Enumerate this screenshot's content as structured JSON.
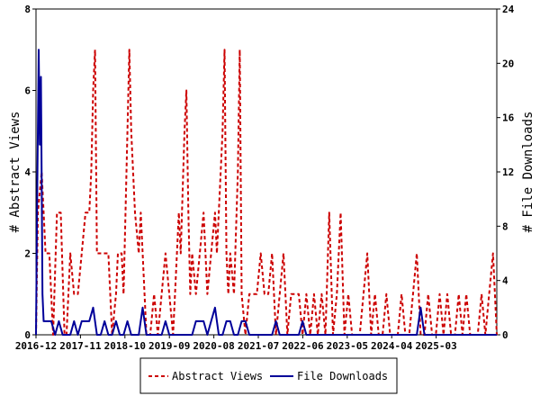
{
  "chart_data": {
    "type": "line",
    "xlabel": "",
    "ylabel": "# Abstract Views",
    "y2label": "# File Downloads",
    "ylim": [
      0,
      8
    ],
    "y2lim": [
      0,
      24
    ],
    "yticks": [
      "0",
      "2",
      "4",
      "6",
      "8"
    ],
    "y2ticks": [
      "0",
      "4",
      "8",
      "12",
      "16",
      "20",
      "24"
    ],
    "xticks": [
      "2016-12",
      "2017-11",
      "2018-10",
      "2019-09",
      "2020-08",
      "2021-07",
      "2022-06",
      "2023-05",
      "2024-04",
      "2025-03"
    ],
    "x_range_months": [
      0,
      114
    ],
    "legend_position": "bottom",
    "grid": false,
    "series": [
      {
        "name": "Abstract Views",
        "axis": "left",
        "color": "#cc0000",
        "style": "dashed",
        "points": [
          [
            0,
            0
          ],
          [
            0.5,
            3
          ],
          [
            1,
            3.5
          ],
          [
            1.5,
            4
          ],
          [
            2,
            3
          ],
          [
            2.5,
            2
          ],
          [
            3.5,
            2
          ],
          [
            4,
            1
          ],
          [
            4.5,
            0
          ],
          [
            5.5,
            3
          ],
          [
            6.5,
            3
          ],
          [
            7.5,
            0
          ],
          [
            8,
            0
          ],
          [
            9,
            2
          ],
          [
            10,
            1
          ],
          [
            11,
            1
          ],
          [
            12,
            2
          ],
          [
            13,
            3
          ],
          [
            14,
            3
          ],
          [
            14.5,
            4
          ],
          [
            15,
            6
          ],
          [
            15.5,
            7
          ],
          [
            16,
            2
          ],
          [
            17,
            2
          ],
          [
            19,
            2
          ],
          [
            20,
            0
          ],
          [
            21,
            1
          ],
          [
            21.5,
            2
          ],
          [
            22,
            2
          ],
          [
            22.5,
            2
          ],
          [
            23,
            1
          ],
          [
            24,
            5
          ],
          [
            24.5,
            7
          ],
          [
            25,
            5
          ],
          [
            26,
            3
          ],
          [
            27,
            2
          ],
          [
            27.5,
            3
          ],
          [
            28,
            2
          ],
          [
            29,
            0
          ],
          [
            30,
            0
          ],
          [
            31,
            1
          ],
          [
            32,
            0
          ],
          [
            33,
            1
          ],
          [
            34,
            2
          ],
          [
            35,
            1
          ],
          [
            36,
            0
          ],
          [
            37,
            2
          ],
          [
            37.5,
            3
          ],
          [
            38,
            2
          ],
          [
            39,
            5
          ],
          [
            39.5,
            6
          ],
          [
            40,
            3
          ],
          [
            40.5,
            1
          ],
          [
            41,
            2
          ],
          [
            42,
            1
          ],
          [
            43,
            2
          ],
          [
            44,
            3
          ],
          [
            45,
            1
          ],
          [
            46,
            2
          ],
          [
            47,
            3
          ],
          [
            47.5,
            2
          ],
          [
            48,
            3
          ],
          [
            49,
            5
          ],
          [
            49.5,
            7
          ],
          [
            50,
            2
          ],
          [
            50.5,
            1
          ],
          [
            51,
            2
          ],
          [
            52,
            1
          ],
          [
            53,
            4
          ],
          [
            53.5,
            7
          ],
          [
            54,
            1
          ],
          [
            55,
            0
          ],
          [
            56,
            1
          ],
          [
            57,
            1
          ],
          [
            58,
            1
          ],
          [
            59,
            2
          ],
          [
            60,
            1
          ],
          [
            61,
            1
          ],
          [
            62,
            2
          ],
          [
            63,
            0
          ],
          [
            64,
            1
          ],
          [
            65,
            2
          ],
          [
            66,
            0
          ],
          [
            67,
            1
          ],
          [
            68,
            1
          ],
          [
            69,
            1
          ],
          [
            70,
            0
          ],
          [
            71,
            1
          ],
          [
            72,
            0
          ],
          [
            73,
            1
          ],
          [
            74,
            0
          ],
          [
            75,
            1
          ],
          [
            76,
            0
          ],
          [
            77,
            3
          ],
          [
            78,
            0
          ],
          [
            79,
            1
          ],
          [
            80,
            3
          ],
          [
            81,
            0
          ],
          [
            82,
            1
          ],
          [
            83,
            0
          ],
          [
            84,
            0
          ],
          [
            85,
            0
          ],
          [
            86,
            1
          ],
          [
            87,
            2
          ],
          [
            88,
            0
          ],
          [
            89,
            1
          ],
          [
            90,
            0
          ],
          [
            91,
            0
          ],
          [
            92,
            1
          ],
          [
            93,
            0
          ],
          [
            94,
            0
          ],
          [
            95,
            0
          ],
          [
            96,
            1
          ],
          [
            97,
            0
          ],
          [
            98,
            0
          ],
          [
            99,
            1
          ],
          [
            100,
            2
          ],
          [
            101,
            0
          ],
          [
            102,
            0
          ],
          [
            103,
            1
          ],
          [
            104,
            0
          ],
          [
            105,
            0
          ],
          [
            106,
            1
          ],
          [
            107,
            0
          ],
          [
            108,
            1
          ],
          [
            109,
            0
          ],
          [
            110,
            0
          ],
          [
            111,
            1
          ],
          [
            112,
            0
          ],
          [
            113,
            1
          ],
          [
            114,
            0
          ],
          [
            115,
            0
          ],
          [
            116,
            0
          ],
          [
            117,
            1
          ],
          [
            118,
            0
          ],
          [
            119,
            1
          ],
          [
            120,
            2
          ],
          [
            120.5,
            1
          ],
          [
            121,
            0
          ]
        ]
      },
      {
        "name": "File Downloads",
        "axis": "right",
        "color": "#000099",
        "style": "solid",
        "points": [
          [
            0,
            0
          ],
          [
            0.3,
            10
          ],
          [
            0.7,
            21
          ],
          [
            1,
            14
          ],
          [
            1.3,
            19
          ],
          [
            1.7,
            3
          ],
          [
            2,
            1
          ],
          [
            3,
            1
          ],
          [
            4,
            1
          ],
          [
            5,
            0
          ],
          [
            6,
            1
          ],
          [
            7,
            0
          ],
          [
            8,
            0
          ],
          [
            9,
            0
          ],
          [
            10,
            1
          ],
          [
            11,
            0
          ],
          [
            12,
            1
          ],
          [
            13,
            1
          ],
          [
            14,
            1
          ],
          [
            15,
            2
          ],
          [
            16,
            0
          ],
          [
            17,
            0
          ],
          [
            18,
            1
          ],
          [
            19,
            0
          ],
          [
            20,
            0
          ],
          [
            21,
            1
          ],
          [
            22,
            0
          ],
          [
            23,
            0
          ],
          [
            24,
            1
          ],
          [
            25,
            0
          ],
          [
            26,
            0
          ],
          [
            27,
            0
          ],
          [
            28,
            2
          ],
          [
            29,
            0
          ],
          [
            30,
            0
          ],
          [
            31,
            0
          ],
          [
            32,
            0
          ],
          [
            33,
            0
          ],
          [
            34,
            1
          ],
          [
            35,
            0
          ],
          [
            36,
            0
          ],
          [
            37,
            0
          ],
          [
            38,
            0
          ],
          [
            39,
            0
          ],
          [
            40,
            0
          ],
          [
            41,
            0
          ],
          [
            42,
            1
          ],
          [
            43,
            1
          ],
          [
            44,
            1
          ],
          [
            45,
            0
          ],
          [
            46,
            1
          ],
          [
            47,
            2
          ],
          [
            48,
            0
          ],
          [
            49,
            0
          ],
          [
            50,
            1
          ],
          [
            51,
            1
          ],
          [
            52,
            0
          ],
          [
            53,
            0
          ],
          [
            54,
            1
          ],
          [
            55,
            1
          ],
          [
            56,
            0
          ],
          [
            57,
            0
          ],
          [
            58,
            0
          ],
          [
            59,
            0
          ],
          [
            60,
            0
          ],
          [
            61,
            0
          ],
          [
            62,
            0
          ],
          [
            63,
            1
          ],
          [
            64,
            0
          ],
          [
            65,
            0
          ],
          [
            66,
            0
          ],
          [
            67,
            0
          ],
          [
            68,
            0
          ],
          [
            69,
            0
          ],
          [
            70,
            1
          ],
          [
            71,
            0
          ],
          [
            72,
            0
          ],
          [
            73,
            0
          ],
          [
            74,
            0
          ],
          [
            75,
            0
          ],
          [
            76,
            0
          ],
          [
            77,
            0
          ],
          [
            78,
            0
          ],
          [
            79,
            0
          ],
          [
            80,
            0
          ],
          [
            81,
            0
          ],
          [
            82,
            0
          ],
          [
            83,
            0
          ],
          [
            84,
            0
          ],
          [
            85,
            0
          ],
          [
            86,
            0
          ],
          [
            87,
            0
          ],
          [
            88,
            0
          ],
          [
            89,
            0
          ],
          [
            90,
            0
          ],
          [
            91,
            0
          ],
          [
            92,
            0
          ],
          [
            93,
            0
          ],
          [
            94,
            0
          ],
          [
            95,
            0
          ],
          [
            96,
            0
          ],
          [
            97,
            0
          ],
          [
            98,
            0
          ],
          [
            99,
            0
          ],
          [
            100,
            0
          ],
          [
            101,
            2
          ],
          [
            102,
            0
          ],
          [
            103,
            0
          ],
          [
            104,
            0
          ],
          [
            105,
            0
          ],
          [
            106,
            0
          ],
          [
            107,
            0
          ],
          [
            108,
            0
          ],
          [
            109,
            0
          ],
          [
            110,
            0
          ],
          [
            111,
            0
          ],
          [
            112,
            0
          ],
          [
            113,
            0
          ],
          [
            114,
            0
          ],
          [
            115,
            0
          ],
          [
            116,
            0
          ],
          [
            117,
            0
          ],
          [
            118,
            0
          ],
          [
            119,
            0
          ],
          [
            120,
            0
          ],
          [
            121,
            0
          ]
        ]
      }
    ]
  }
}
